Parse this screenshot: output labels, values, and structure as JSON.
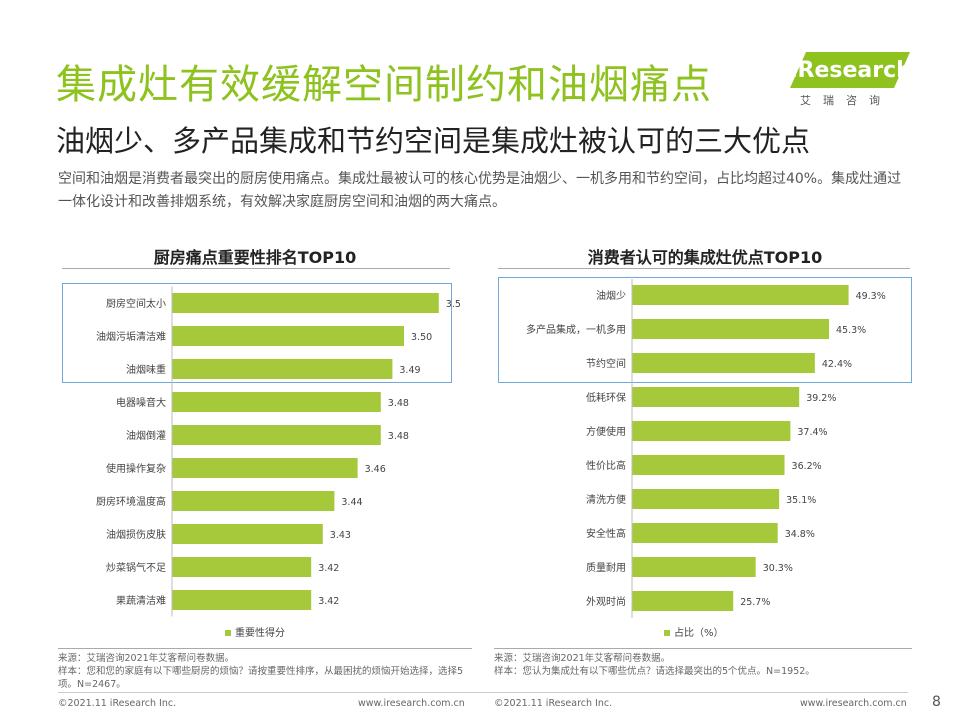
{
  "header": {
    "title": "集成灶有效缓解空间制约和油烟痛点",
    "subtitle": "油烟少、多产品集成和节约空间是集成灶被认可的三大优点",
    "description": "空间和油烟是消费者最突出的厨房使用痛点。集成灶最被认可的核心优势是油烟少、一机多用和节约空间，占比均超过40%。集成灶通过一体化设计和改善排烟系统，有效解决家庭厨房空间和油烟的两大痛点。"
  },
  "logo": {
    "text": "iResearch",
    "sub": "艾瑞咨询"
  },
  "colors": {
    "accent": "#8dc21f",
    "bar": "#a5c93b",
    "highlight_border": "#6fa8dc"
  },
  "chart_data": [
    {
      "type": "bar",
      "orientation": "horizontal",
      "title": "厨房痛点重要性排名TOP10",
      "categories": [
        "厨房空间太小",
        "油烟污垢清洁难",
        "油烟味重",
        "电器噪音大",
        "油烟倒灌",
        "使用操作复杂",
        "厨房环境温度高",
        "油烟损伤皮肤",
        "炒菜锅气不足",
        "果蔬清洁难"
      ],
      "values": [
        3.53,
        3.5,
        3.49,
        3.48,
        3.48,
        3.46,
        3.44,
        3.43,
        3.42,
        3.42
      ],
      "value_labels": [
        "3.53",
        "3.50",
        "3.49",
        "3.48",
        "3.48",
        "3.46",
        "3.44",
        "3.43",
        "3.42",
        "3.42"
      ],
      "legend": "重要性得分",
      "xlim": [
        3.3,
        3.55
      ],
      "highlighted_top": 3
    },
    {
      "type": "bar",
      "orientation": "horizontal",
      "title": "消费者认可的集成灶优点TOP10",
      "categories": [
        "油烟少",
        "多产品集成，一机多用",
        "节约空间",
        "低耗环保",
        "方便使用",
        "性价比高",
        "清洗方便",
        "安全性高",
        "质量耐用",
        "外观时尚"
      ],
      "values": [
        49.3,
        45.3,
        42.4,
        39.2,
        37.4,
        36.2,
        35.1,
        34.8,
        30.3,
        25.7
      ],
      "value_labels": [
        "49.3%",
        "45.3%",
        "42.4%",
        "39.2%",
        "37.4%",
        "36.2%",
        "35.1%",
        "34.8%",
        "30.3%",
        "25.7%"
      ],
      "legend": "占比（%）",
      "xlim": [
        5,
        50
      ],
      "highlighted_top": 3
    }
  ],
  "notes": {
    "left_source": "来源：艾瑞咨询2021年艾客帮问卷数据。",
    "left_sample": "样本：您和您的家庭有以下哪些厨房的烦恼？请按重要性排序，从最困扰的烦恼开始选择，选择5项。N=2467。",
    "right_source": "来源：艾瑞咨询2021年艾客帮问卷数据。",
    "right_sample": "样本：您认为集成灶有以下哪些优点？请选择最突出的5个优点。N=1952。"
  },
  "footer": {
    "left_copyright": "©2021.11 iResearch Inc.",
    "left_url": "www.iresearch.com.cn",
    "right_copyright": "©2021.11 iResearch Inc.",
    "right_url": "www.iresearch.com.cn",
    "page_number": "8"
  }
}
